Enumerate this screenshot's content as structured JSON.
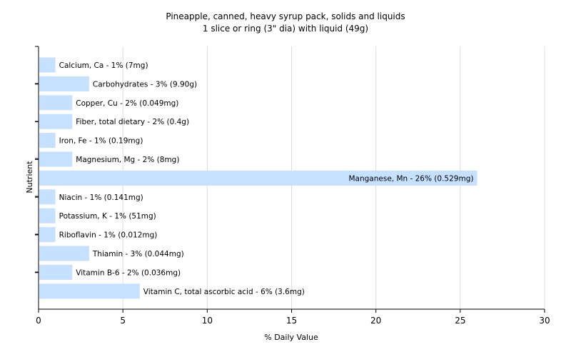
{
  "chart_data": {
    "type": "bar",
    "orientation": "horizontal",
    "title": "Pineapple, canned, heavy syrup pack, solids and liquids",
    "subtitle": "1 slice or ring (3\" dia) with liquid (49g)",
    "xlabel": "% Daily Value",
    "ylabel": "Nutrient",
    "xlim": [
      0,
      30
    ],
    "xticks": [
      0,
      5,
      10,
      15,
      20,
      25,
      30
    ],
    "grid": "vertical",
    "bar_color": "#c6e0ff",
    "categories": [
      "Calcium, Ca",
      "Carbohydrates",
      "Copper, Cu",
      "Fiber, total dietary",
      "Iron, Fe",
      "Magnesium, Mg",
      "Manganese, Mn",
      "Niacin",
      "Potassium, K",
      "Riboflavin",
      "Thiamin",
      "Vitamin B-6",
      "Vitamin C, total ascorbic acid"
    ],
    "values": [
      1,
      3,
      2,
      2,
      1,
      2,
      26,
      1,
      1,
      1,
      3,
      2,
      6
    ],
    "labels": [
      "Calcium, Ca - 1% (7mg)",
      "Carbohydrates - 3% (9.90g)",
      "Copper, Cu - 2% (0.049mg)",
      "Fiber, total dietary - 2% (0.4g)",
      "Iron, Fe - 1% (0.19mg)",
      "Magnesium, Mg - 2% (8mg)",
      "Manganese, Mn - 26% (0.529mg)",
      "Niacin - 1% (0.141mg)",
      "Potassium, K - 1% (51mg)",
      "Riboflavin - 1% (0.012mg)",
      "Thiamin - 3% (0.044mg)",
      "Vitamin B-6 - 2% (0.036mg)",
      "Vitamin C, total ascorbic acid - 6% (3.6mg)"
    ]
  }
}
